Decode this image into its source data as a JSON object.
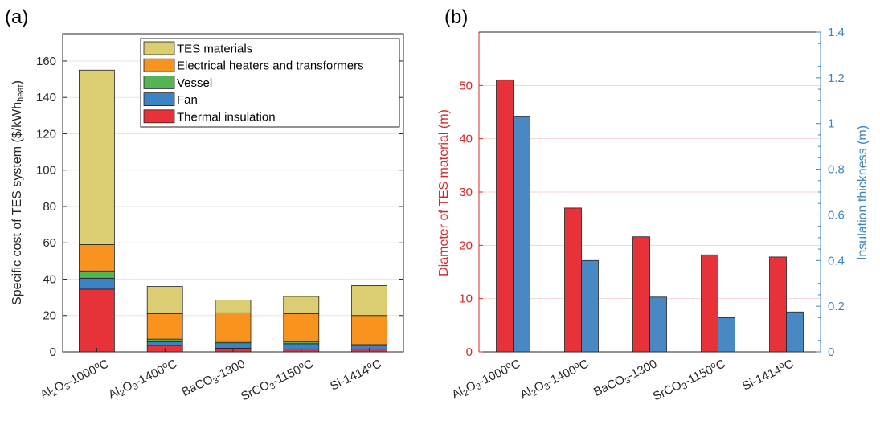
{
  "panel_a_label": "(a)",
  "panel_b_label": "(b)",
  "chart_data": [
    {
      "type": "bar",
      "stacked": true,
      "ylabel": {
        "main": "Specific cost of TES system ($/kWh",
        "sub": "heat",
        "close": ")"
      },
      "ylim": [
        0,
        175
      ],
      "yticks": [
        0,
        20,
        40,
        60,
        80,
        100,
        120,
        140,
        160
      ],
      "grid": true,
      "legend_position": "top-right",
      "categories": [
        {
          "parts": [
            [
              "Al",
              ""
            ],
            [
              "2",
              "sub"
            ],
            [
              "O",
              ""
            ],
            [
              "3",
              "sub"
            ],
            [
              "-1000",
              ""
            ],
            [
              "o",
              "sup"
            ],
            [
              "C",
              ""
            ]
          ]
        },
        {
          "parts": [
            [
              "Al",
              ""
            ],
            [
              "2",
              "sub"
            ],
            [
              "O",
              ""
            ],
            [
              "3",
              "sub"
            ],
            [
              "-1400",
              ""
            ],
            [
              "o",
              "sup"
            ],
            [
              "C",
              ""
            ]
          ]
        },
        {
          "parts": [
            [
              "BaCO",
              ""
            ],
            [
              "3",
              "sub"
            ],
            [
              "-1300",
              ""
            ]
          ]
        },
        {
          "parts": [
            [
              "SrCO",
              ""
            ],
            [
              "3",
              "sub"
            ],
            [
              "-1150",
              ""
            ],
            [
              "o",
              "sup"
            ],
            [
              "C",
              ""
            ]
          ]
        },
        {
          "parts": [
            [
              "Si-1414",
              ""
            ],
            [
              "o",
              "sup"
            ],
            [
              "C",
              ""
            ]
          ]
        }
      ],
      "series": [
        {
          "name": "Thermal insulation",
          "color": "#e8323a",
          "values": [
            34.5,
            3.5,
            2,
            1.5,
            1.5
          ]
        },
        {
          "name": "Fan",
          "color": "#3d82c2",
          "values": [
            6,
            2,
            3,
            3,
            2
          ]
        },
        {
          "name": "Vessel",
          "color": "#55b555",
          "values": [
            4,
            1.5,
            1,
            1,
            0.5
          ]
        },
        {
          "name": "Electrical heaters and transformers",
          "color": "#f7931e",
          "values": [
            14.5,
            14,
            15.5,
            15.5,
            16
          ]
        },
        {
          "name": "TES materials",
          "color": "#dbcd72",
          "values": [
            96,
            15,
            7,
            9.5,
            16.5
          ]
        }
      ],
      "legend_order": [
        "TES materials",
        "Electrical heaters and transformers",
        "Vessel",
        "Fan",
        "Thermal insulation"
      ]
    },
    {
      "type": "bar",
      "grouped": true,
      "ylabel_left": "Diameter of TES material (m)",
      "ylabel_right": "Insulation thickness (m)",
      "ylim_left": [
        0,
        60
      ],
      "yticks_left": [
        0,
        10,
        20,
        30,
        40,
        50
      ],
      "ylim_right": [
        0,
        1.4
      ],
      "yticks_right": [
        "0",
        "0.2",
        "0.4",
        "0.6",
        "0.8",
        "1",
        "1.2",
        "1.4"
      ],
      "grid": true,
      "categories": [
        {
          "parts": [
            [
              "Al",
              ""
            ],
            [
              "2",
              "sub"
            ],
            [
              "O",
              ""
            ],
            [
              "3",
              "sub"
            ],
            [
              "-1000",
              ""
            ],
            [
              "o",
              "sup"
            ],
            [
              "C",
              ""
            ]
          ]
        },
        {
          "parts": [
            [
              "Al",
              ""
            ],
            [
              "2",
              "sub"
            ],
            [
              "O",
              ""
            ],
            [
              "3",
              "sub"
            ],
            [
              "-1400",
              ""
            ],
            [
              "o",
              "sup"
            ],
            [
              "C",
              ""
            ]
          ]
        },
        {
          "parts": [
            [
              "BaCO",
              ""
            ],
            [
              "3",
              "sub"
            ],
            [
              "-1300",
              ""
            ]
          ]
        },
        {
          "parts": [
            [
              "SrCO",
              ""
            ],
            [
              "3",
              "sub"
            ],
            [
              "-1150",
              ""
            ],
            [
              "o",
              "sup"
            ],
            [
              "C",
              ""
            ]
          ]
        },
        {
          "parts": [
            [
              "Si-1414",
              ""
            ],
            [
              "o",
              "sup"
            ],
            [
              "C",
              ""
            ]
          ]
        }
      ],
      "series": [
        {
          "axis": "left",
          "color": "#e8323a",
          "values": [
            51,
            27,
            21.6,
            18.2,
            17.8
          ]
        },
        {
          "axis": "right",
          "color": "#4a88c4",
          "values": [
            1.03,
            0.4,
            0.24,
            0.15,
            0.175
          ]
        }
      ],
      "left_color": "#d42a2a",
      "right_color": "#3b86bf"
    }
  ]
}
